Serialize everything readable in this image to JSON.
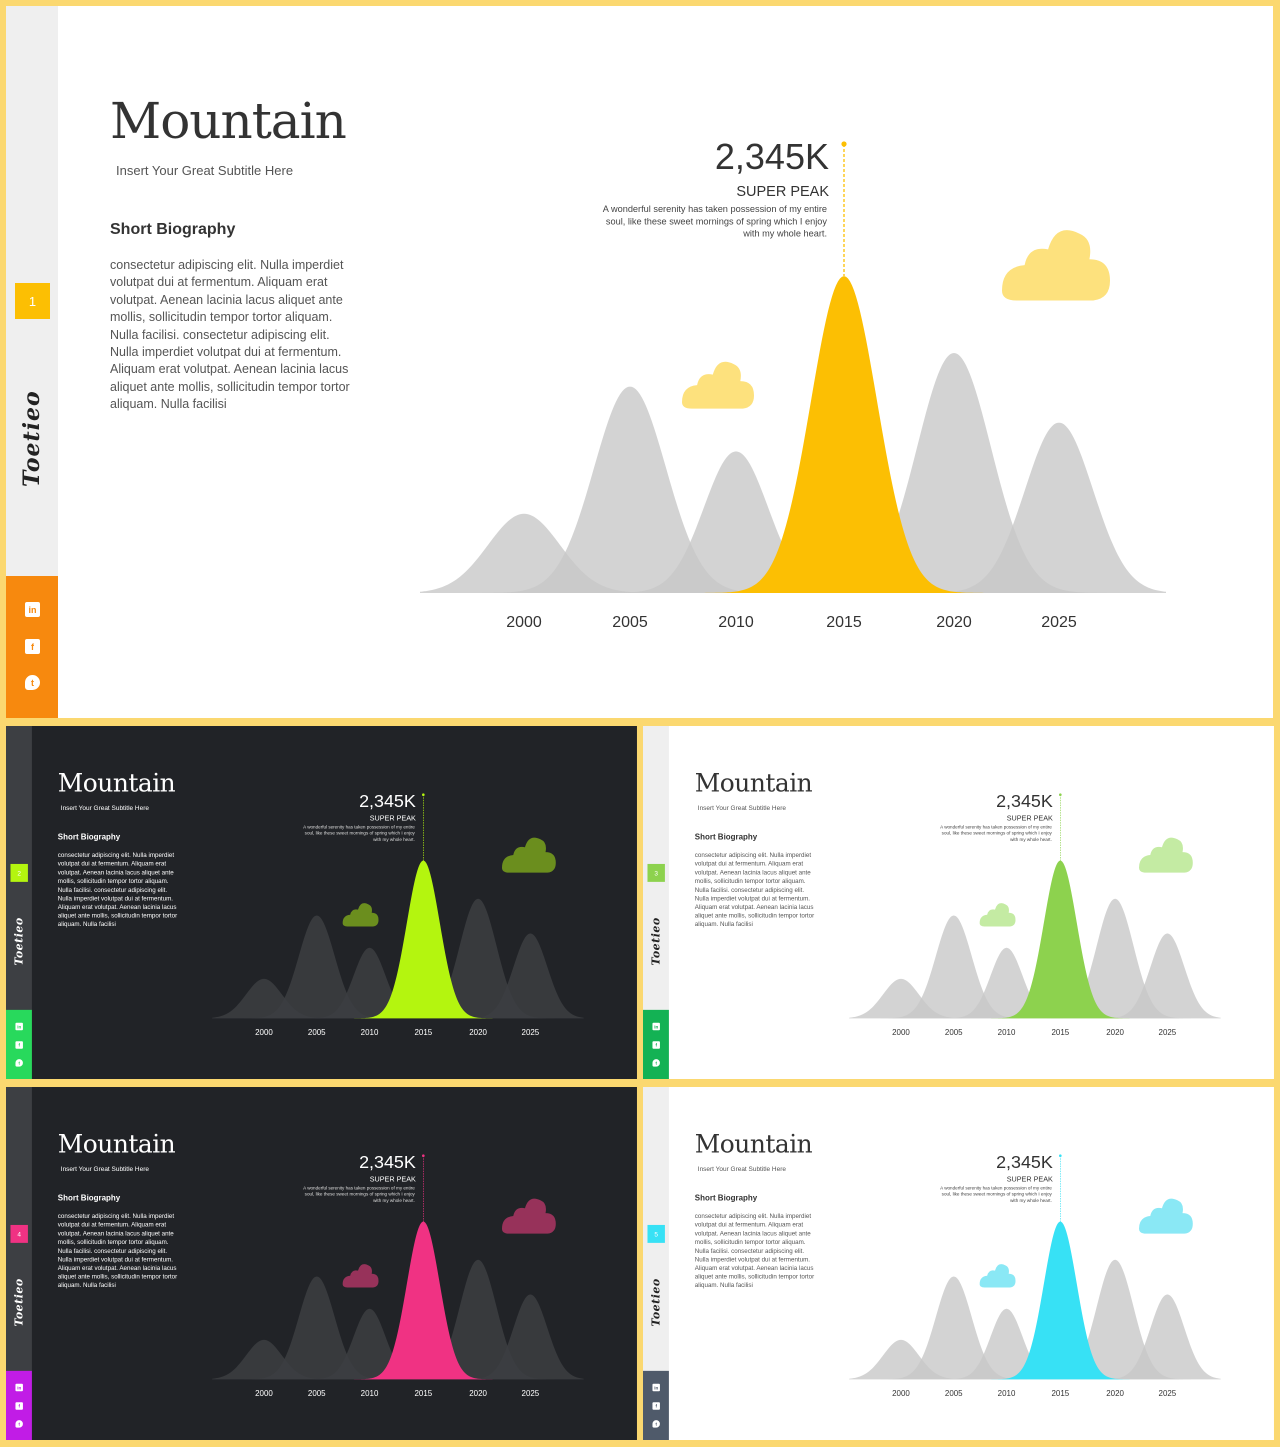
{
  "slides": [
    {
      "theme": "light",
      "accent": "#fcbf03",
      "cloud": "#fde17d",
      "social_bg": "#f7890e",
      "social_icon": "#f7890e",
      "page_number": "1"
    },
    {
      "theme": "dark",
      "accent": "#b4f50f",
      "cloud": "#6b8e1e",
      "social_bg": "#28d95c",
      "social_icon": "#28d95c",
      "page_number": "2"
    },
    {
      "theme": "light",
      "accent": "#8dd24e",
      "cloud": "#c4eba3",
      "social_bg": "#13b254",
      "social_icon": "#13b254",
      "page_number": "3"
    },
    {
      "theme": "dark",
      "accent": "#f03283",
      "cloud": "#97325a",
      "social_bg": "#c11ce6",
      "social_icon": "#c11ce6",
      "page_number": "4"
    },
    {
      "theme": "light",
      "accent": "#37e1f5",
      "cloud": "#8ae8f5",
      "social_bg": "#4f5a6a",
      "social_icon": "#4f5a6a",
      "page_number": "5"
    }
  ],
  "content": {
    "title": "Mountain",
    "subtitle": "Insert  Your Great Subtitle Here",
    "bio_heading": "Short Biography",
    "bio_text": "consectetur adipiscing elit. Nulla imperdiet volutpat dui at fermentum. Aliquam erat volutpat. Aenean lacinia lacus aliquet ante mollis, sollicitudin tempor tortor aliquam. Nulla facilisi. consectetur adipiscing elit. Nulla imperdiet volutpat dui at fermentum. Aliquam erat volutpat. Aenean lacinia lacus aliquet ante mollis, sollicitudin tempor tortor aliquam. Nulla facilisi",
    "brand": "Toetieo",
    "peak_value": "2,345K",
    "peak_label": "SUPER PEAK",
    "peak_desc_lines": [
      "A wonderful serenity has taken possession of my entire",
      "soul, like these sweet mornings of spring which I enjoy",
      "with my whole heart."
    ],
    "social_icons": [
      "linkedin-icon",
      "facebook-icon",
      "twitter-icon"
    ]
  },
  "chart_data": {
    "type": "area",
    "categories": [
      "2000",
      "2005",
      "2010",
      "2015",
      "2020",
      "2025"
    ],
    "values": [
      0.33,
      0.86,
      0.59,
      1.32,
      1.0,
      0.71
    ],
    "highlight_category": "2015",
    "ylim": [
      0,
      1.4
    ],
    "grid": false
  }
}
